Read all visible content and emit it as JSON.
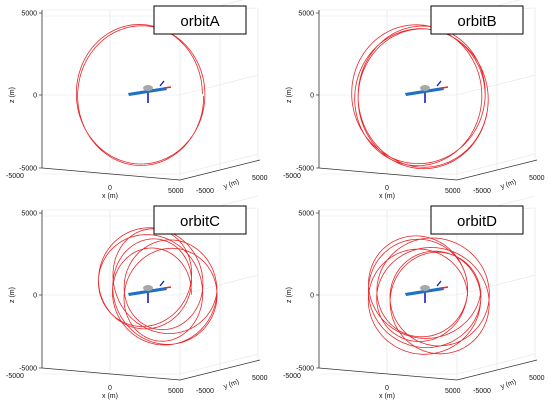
{
  "chart_data": [
    {
      "type": "line",
      "title": "orbitA",
      "xlabel": "x (m)",
      "ylabel": "y (m)",
      "zlabel": "z (m)",
      "x_ticks": [
        "0"
      ],
      "y_ticks": [
        "-5000",
        "5000"
      ],
      "z_ticks": [
        "-5000",
        "0",
        "5000"
      ],
      "xlim": [
        -5000,
        5000
      ],
      "ylim": [
        -5000,
        5000
      ],
      "zlim": [
        -5000,
        5000
      ],
      "grid": true,
      "legend": "none",
      "series": [
        {
          "x_center": 0,
          "z_center": 0,
          "radius_x": 4300,
          "radius_z": 4400,
          "loops": 2,
          "spread": 200,
          "color": "#e8262a"
        }
      ]
    },
    {
      "type": "line",
      "title": "orbitB",
      "xlabel": "x (m)",
      "ylabel": "y (m)",
      "zlabel": "z (m)",
      "x_ticks": [
        "0"
      ],
      "y_ticks": [
        "-5000",
        "5000"
      ],
      "z_ticks": [
        "-5000",
        "0",
        "5000"
      ],
      "xlim": [
        -5000,
        5000
      ],
      "ylim": [
        -5000,
        5000
      ],
      "zlim": [
        -5000,
        5000
      ],
      "grid": true,
      "legend": "none",
      "series": [
        {
          "x_center": 200,
          "z_center": -100,
          "radius_x": 4400,
          "radius_z": 4400,
          "loops": 4,
          "spread": 500,
          "color": "#e8262a"
        }
      ]
    },
    {
      "type": "line",
      "title": "orbitC",
      "xlabel": "x (m)",
      "ylabel": "y (m)",
      "zlabel": "z (m)",
      "x_ticks": [
        "0"
      ],
      "y_ticks": [
        "-5000",
        "5000"
      ],
      "z_ticks": [
        "-5000",
        "0",
        "5000"
      ],
      "xlim": [
        -5000,
        5000
      ],
      "ylim": [
        -5000,
        5000
      ],
      "zlim": [
        -5000,
        5000
      ],
      "grid": true,
      "legend": "none",
      "series": [
        {
          "x_center": 1200,
          "z_center": 500,
          "radius_x": 3100,
          "radius_z": 3100,
          "loops": 7,
          "spread": 2000,
          "color": "#e8262a"
        }
      ]
    },
    {
      "type": "line",
      "title": "orbitD",
      "xlabel": "x (m)",
      "ylabel": "y (m)",
      "zlabel": "z (m)",
      "x_ticks": [
        "0"
      ],
      "y_ticks": [
        "-5000",
        "5000"
      ],
      "z_ticks": [
        "-5000",
        "0",
        "5000"
      ],
      "xlim": [
        -5000,
        5000
      ],
      "ylim": [
        -5000,
        5000
      ],
      "zlim": [
        -5000,
        5000
      ],
      "grid": true,
      "legend": "none",
      "series": [
        {
          "x_center": 800,
          "z_center": 0,
          "radius_x": 3400,
          "radius_z": 3200,
          "loops": 7,
          "spread": 1700,
          "color": "#e8262a"
        }
      ]
    }
  ],
  "colors": {
    "orbit": "#e8262a",
    "aircraft_body": "#1f6fc4",
    "aircraft_cockpit": "#a8a8a8",
    "aircraft_tail": "#e8262a",
    "aircraft_fin": "#1a1acc",
    "grid": "#e3e3e3",
    "axis": "#333333"
  }
}
